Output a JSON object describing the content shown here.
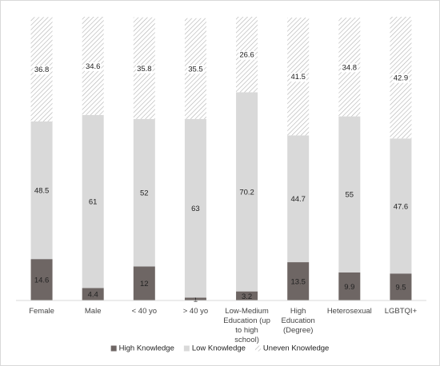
{
  "chart_data": {
    "type": "stacked_bar",
    "categories": [
      "Female",
      "Male",
      "< 40 yo",
      "> 40 yo",
      "Low-Medium Education (up to high school)",
      "High Education (Degree)",
      "Heterosexual",
      "LGBTQI+"
    ],
    "series": [
      {
        "name": "High Knowledge",
        "color": "#6e6664",
        "label_color": "#ffffff",
        "values": [
          14.6,
          4.4,
          12,
          1,
          3.2,
          13.5,
          9.9,
          9.5
        ]
      },
      {
        "name": "Low Knowledge",
        "color": "#d9d9d9",
        "label_color": "#222222",
        "values": [
          48.5,
          61,
          52,
          63,
          70.2,
          44.7,
          55,
          47.6
        ]
      },
      {
        "name": "Uneven Knowledge",
        "color": "#b0b0b0",
        "pattern": "hatch",
        "label_color": "#222222",
        "values": [
          36.8,
          34.6,
          35.8,
          35.5,
          26.6,
          41.5,
          34.8,
          42.9
        ]
      }
    ],
    "ylim": [
      0,
      100
    ],
    "legend": "bottom"
  }
}
